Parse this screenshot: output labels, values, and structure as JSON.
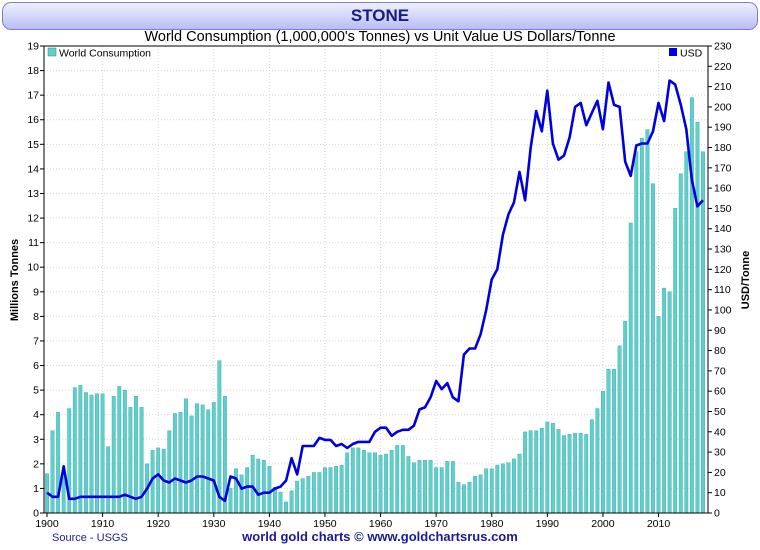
{
  "header": {
    "title": "STONE"
  },
  "chart_data": {
    "type": "bar",
    "title": "World Consumption (1,000,000's Tonnes) vs Unit Value US Dollars/Tonne",
    "ylabel": "Millions Tonnes",
    "y2label": "USD/Tonne",
    "ylim": [
      0,
      19
    ],
    "y2lim": [
      0,
      230
    ],
    "xlim": [
      1900,
      2018
    ],
    "x_ticks": [
      1900,
      1910,
      1920,
      1930,
      1940,
      1950,
      1960,
      1970,
      1980,
      1990,
      2000,
      2010
    ],
    "y_ticks": [
      0,
      1,
      2,
      3,
      4,
      5,
      6,
      7,
      8,
      9,
      10,
      11,
      12,
      13,
      14,
      15,
      16,
      17,
      18,
      19
    ],
    "y2_ticks": [
      0,
      10,
      20,
      30,
      40,
      50,
      60,
      70,
      80,
      90,
      100,
      110,
      120,
      130,
      140,
      150,
      160,
      170,
      180,
      190,
      200,
      210,
      220,
      230
    ],
    "grid": true,
    "legend": [
      {
        "name": "World Consumption",
        "position": "top-left",
        "color": "#5fcfcc"
      },
      {
        "name": "USD",
        "position": "top-right",
        "color": "#0000dd"
      }
    ],
    "years": [
      1900,
      1901,
      1902,
      1903,
      1904,
      1905,
      1906,
      1907,
      1908,
      1909,
      1910,
      1911,
      1912,
      1913,
      1914,
      1915,
      1916,
      1917,
      1918,
      1919,
      1920,
      1921,
      1922,
      1923,
      1924,
      1925,
      1926,
      1927,
      1928,
      1929,
      1930,
      1931,
      1932,
      1933,
      1934,
      1935,
      1936,
      1937,
      1938,
      1939,
      1940,
      1941,
      1942,
      1943,
      1944,
      1945,
      1946,
      1947,
      1948,
      1949,
      1950,
      1951,
      1952,
      1953,
      1954,
      1955,
      1956,
      1957,
      1958,
      1959,
      1960,
      1961,
      1962,
      1963,
      1964,
      1965,
      1966,
      1967,
      1968,
      1969,
      1970,
      1971,
      1972,
      1973,
      1974,
      1975,
      1976,
      1977,
      1978,
      1979,
      1980,
      1981,
      1982,
      1983,
      1984,
      1985,
      1986,
      1987,
      1988,
      1989,
      1990,
      1991,
      1992,
      1993,
      1994,
      1995,
      1996,
      1997,
      1998,
      1999,
      2000,
      2001,
      2002,
      2003,
      2004,
      2005,
      2006,
      2007,
      2008,
      2009,
      2010,
      2011,
      2012,
      2013,
      2014,
      2015,
      2016,
      2017,
      2018
    ],
    "series": [
      {
        "name": "World Consumption",
        "kind": "bar",
        "axis": "left",
        "values": [
          1.6,
          3.35,
          4.1,
          1.6,
          4.25,
          5.1,
          5.2,
          4.9,
          4.8,
          4.85,
          4.85,
          2.7,
          4.75,
          5.15,
          5.0,
          4.3,
          4.75,
          4.3,
          2.0,
          2.55,
          2.65,
          2.6,
          3.35,
          4.05,
          4.1,
          4.65,
          3.95,
          4.45,
          4.4,
          4.2,
          4.5,
          6.2,
          4.75,
          1.0,
          1.8,
          1.55,
          1.85,
          2.35,
          2.2,
          2.15,
          1.9,
          1.05,
          0.85,
          0.45,
          0.9,
          1.3,
          1.4,
          1.5,
          1.65,
          1.65,
          1.85,
          1.85,
          1.9,
          1.95,
          2.45,
          2.65,
          2.65,
          2.55,
          2.45,
          2.45,
          2.35,
          2.4,
          2.55,
          2.75,
          2.75,
          2.3,
          2.05,
          2.15,
          2.15,
          2.15,
          1.85,
          1.85,
          2.1,
          2.1,
          1.25,
          1.15,
          1.25,
          1.5,
          1.55,
          1.8,
          1.8,
          1.95,
          2.0,
          2.05,
          2.2,
          2.4,
          3.3,
          3.35,
          3.35,
          3.45,
          3.7,
          3.65,
          3.4,
          3.15,
          3.2,
          3.25,
          3.25,
          3.2,
          3.8,
          4.25,
          4.95,
          5.85,
          5.85,
          6.8,
          7.8,
          11.8,
          14.7,
          15.25,
          15.6,
          13.4,
          8.0,
          9.15,
          9.0,
          12.4,
          13.8,
          14.7,
          16.9,
          15.9,
          14.7
        ]
      },
      {
        "name": "USD",
        "kind": "line",
        "axis": "right",
        "values": [
          10,
          8,
          8,
          23,
          7,
          7,
          8,
          8,
          8,
          8,
          8,
          8,
          8,
          8,
          9,
          8,
          7,
          8,
          12,
          17,
          19,
          16,
          15,
          17,
          16,
          15,
          16,
          18,
          18,
          17,
          16,
          8,
          6,
          18,
          17,
          12,
          13,
          13,
          9,
          10,
          10,
          12,
          13,
          16,
          27,
          19,
          33,
          33,
          33,
          37,
          36,
          36,
          33,
          34,
          32,
          34,
          35,
          35,
          35,
          40,
          42,
          42,
          38,
          40,
          41,
          41,
          43,
          51,
          52,
          57,
          65,
          61,
          64,
          57,
          55,
          78,
          81,
          81,
          88,
          100,
          115,
          120,
          137,
          147,
          153,
          168,
          154,
          180,
          198,
          188,
          208,
          182,
          174,
          176,
          185,
          200,
          202,
          191,
          197,
          203,
          189,
          212,
          201,
          200,
          173,
          166,
          181,
          182,
          182,
          188,
          202,
          193,
          213,
          211,
          201,
          189,
          164,
          151,
          154
        ]
      }
    ]
  },
  "footer": {
    "source": "Source - USGS",
    "credit": "world gold charts © www.goldchartsrus.com"
  }
}
